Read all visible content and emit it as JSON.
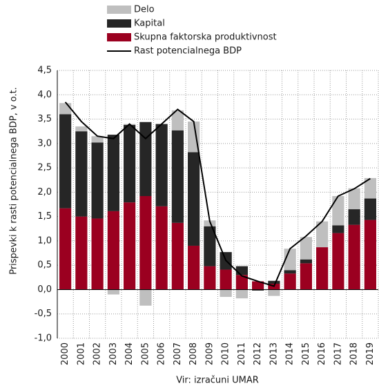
{
  "chart_data": {
    "type": "bar",
    "y_label": "Prispevki k rasti potencialnega BDP, v o.t.",
    "x_label": "Vir: izračuni UMAR",
    "categories": [
      "2000",
      "2001",
      "2002",
      "2003",
      "2004",
      "2005",
      "2006",
      "2007",
      "2008",
      "2009",
      "2010",
      "2011",
      "2012",
      "2013",
      "2014",
      "2015",
      "2016",
      "2017",
      "2018",
      "2019"
    ],
    "series": [
      {
        "name": "Delo",
        "type": "bar",
        "color": "#bfbfbf",
        "values": [
          0.23,
          0.1,
          0.13,
          -0.1,
          0.02,
          -0.33,
          0.0,
          0.41,
          0.63,
          0.12,
          -0.15,
          -0.18,
          0.0,
          -0.13,
          0.44,
          0.46,
          0.53,
          0.6,
          0.43,
          0.42
        ]
      },
      {
        "name": "Kapital",
        "type": "bar",
        "color": "#262626",
        "values": [
          1.93,
          1.75,
          1.56,
          1.57,
          1.59,
          1.52,
          1.69,
          1.9,
          1.92,
          0.82,
          0.36,
          0.18,
          -0.02,
          0.06,
          0.07,
          0.08,
          0.0,
          0.16,
          0.32,
          0.44
        ]
      },
      {
        "name": "Skupna faktorska produktivnost",
        "type": "bar",
        "color": "#9b0020",
        "values": [
          1.67,
          1.5,
          1.46,
          1.61,
          1.79,
          1.92,
          1.71,
          1.37,
          0.9,
          0.48,
          0.41,
          0.3,
          0.17,
          0.12,
          0.33,
          0.54,
          0.87,
          1.16,
          1.33,
          1.43
        ]
      },
      {
        "name": "Rast potencialnega BDP",
        "type": "line",
        "color": "#000000",
        "values": [
          3.85,
          3.45,
          3.15,
          3.1,
          3.4,
          3.1,
          3.4,
          3.7,
          3.45,
          1.4,
          0.6,
          0.28,
          0.17,
          0.07,
          0.84,
          1.1,
          1.4,
          1.92,
          2.07,
          2.28
        ]
      }
    ],
    "ylim": [
      -1.0,
      4.5
    ],
    "yticks": [
      {
        "value": -1.0,
        "label": "-1,0"
      },
      {
        "value": -0.5,
        "label": "-0,5"
      },
      {
        "value": 0.0,
        "label": "0,0"
      },
      {
        "value": 0.5,
        "label": "0,5"
      },
      {
        "value": 1.0,
        "label": "1,0"
      },
      {
        "value": 1.5,
        "label": "1,5"
      },
      {
        "value": 2.0,
        "label": "2,0"
      },
      {
        "value": 2.5,
        "label": "2,5"
      },
      {
        "value": 3.0,
        "label": "3,0"
      },
      {
        "value": 3.5,
        "label": "3,5"
      },
      {
        "value": 4.0,
        "label": "4,0"
      },
      {
        "value": 4.5,
        "label": "4,5"
      }
    ],
    "grid": true
  }
}
